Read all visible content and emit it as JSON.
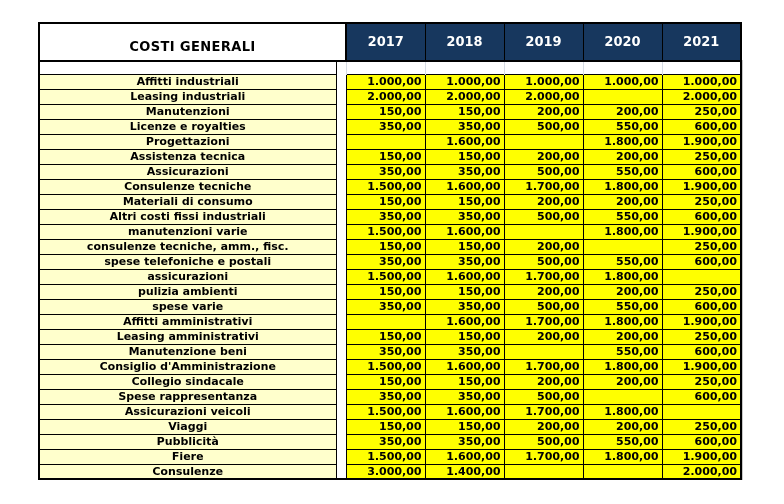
{
  "table": {
    "title": "COSTI GENERALI",
    "years": [
      "2017",
      "2018",
      "2019",
      "2020",
      "2021"
    ],
    "rows": [
      {
        "label": "Affitti industriali",
        "values": [
          "1.000,00",
          "1.000,00",
          "1.000,00",
          "1.000,00",
          "1.000,00"
        ]
      },
      {
        "label": "Leasing industriali",
        "values": [
          "2.000,00",
          "2.000,00",
          "2.000,00",
          "",
          "2.000,00"
        ]
      },
      {
        "label": "Manutenzioni",
        "values": [
          "150,00",
          "150,00",
          "200,00",
          "200,00",
          "250,00"
        ]
      },
      {
        "label": "Licenze e royalties",
        "values": [
          "350,00",
          "350,00",
          "500,00",
          "550,00",
          "600,00"
        ]
      },
      {
        "label": "Progettazioni",
        "values": [
          "",
          "1.600,00",
          "",
          "1.800,00",
          "1.900,00"
        ]
      },
      {
        "label": "Assistenza tecnica",
        "values": [
          "150,00",
          "150,00",
          "200,00",
          "200,00",
          "250,00"
        ]
      },
      {
        "label": "Assicurazioni",
        "values": [
          "350,00",
          "350,00",
          "500,00",
          "550,00",
          "600,00"
        ]
      },
      {
        "label": "Consulenze tecniche",
        "values": [
          "1.500,00",
          "1.600,00",
          "1.700,00",
          "1.800,00",
          "1.900,00"
        ]
      },
      {
        "label": "Materiali di consumo",
        "values": [
          "150,00",
          "150,00",
          "200,00",
          "200,00",
          "250,00"
        ]
      },
      {
        "label": "Altri costi fissi industriali",
        "values": [
          "350,00",
          "350,00",
          "500,00",
          "550,00",
          "600,00"
        ]
      },
      {
        "label": "manutenzioni varie",
        "values": [
          "1.500,00",
          "1.600,00",
          "",
          "1.800,00",
          "1.900,00"
        ]
      },
      {
        "label": "consulenze tecniche, amm., fisc.",
        "values": [
          "150,00",
          "150,00",
          "200,00",
          "",
          "250,00"
        ]
      },
      {
        "label": "spese telefoniche e postali",
        "values": [
          "350,00",
          "350,00",
          "500,00",
          "550,00",
          "600,00"
        ]
      },
      {
        "label": "assicurazioni",
        "values": [
          "1.500,00",
          "1.600,00",
          "1.700,00",
          "1.800,00",
          ""
        ]
      },
      {
        "label": "pulizia ambienti",
        "values": [
          "150,00",
          "150,00",
          "200,00",
          "200,00",
          "250,00"
        ]
      },
      {
        "label": "spese varie",
        "values": [
          "350,00",
          "350,00",
          "500,00",
          "550,00",
          "600,00"
        ]
      },
      {
        "label": "Affitti amministrativi",
        "values": [
          "",
          "1.600,00",
          "1.700,00",
          "1.800,00",
          "1.900,00"
        ]
      },
      {
        "label": "Leasing amministrativi",
        "values": [
          "150,00",
          "150,00",
          "200,00",
          "200,00",
          "250,00"
        ]
      },
      {
        "label": "Manutenzione beni",
        "values": [
          "350,00",
          "350,00",
          "",
          "550,00",
          "600,00"
        ]
      },
      {
        "label": "Consiglio d'Amministrazione",
        "values": [
          "1.500,00",
          "1.600,00",
          "1.700,00",
          "1.800,00",
          "1.900,00"
        ]
      },
      {
        "label": "Collegio sindacale",
        "values": [
          "150,00",
          "150,00",
          "200,00",
          "200,00",
          "250,00"
        ]
      },
      {
        "label": "Spese rappresentanza",
        "values": [
          "350,00",
          "350,00",
          "500,00",
          "",
          "600,00"
        ]
      },
      {
        "label": "Assicurazioni veicoli",
        "values": [
          "1.500,00",
          "1.600,00",
          "1.700,00",
          "1.800,00",
          ""
        ]
      },
      {
        "label": "Viaggi",
        "values": [
          "150,00",
          "150,00",
          "200,00",
          "200,00",
          "250,00"
        ]
      },
      {
        "label": "Pubblicità",
        "values": [
          "350,00",
          "350,00",
          "500,00",
          "550,00",
          "600,00"
        ]
      },
      {
        "label": "Fiere",
        "values": [
          "1.500,00",
          "1.600,00",
          "1.700,00",
          "1.800,00",
          "1.900,00"
        ]
      },
      {
        "label": "Consulenze",
        "values": [
          "3.000,00",
          "1.400,00",
          "",
          "",
          "2.000,00"
        ]
      }
    ],
    "colors": {
      "header_bg": "#17375E",
      "header_text": "#FFFFFF",
      "label_bg": "#FFFFCC",
      "value_bg": "#FFFF00",
      "cell_text": "#000000",
      "border": "#000000",
      "gridline": "#D6DBE4"
    }
  }
}
